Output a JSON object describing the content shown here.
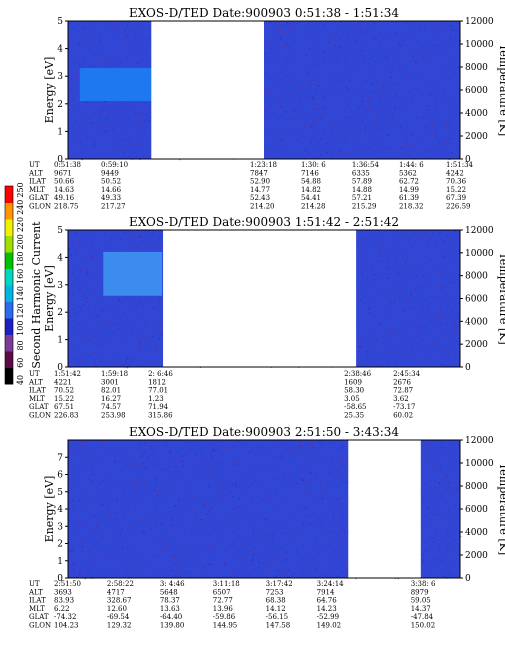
{
  "chart_data": {
    "type": "heatmap",
    "colorbar": {
      "label": "Second Harmonic Current",
      "ticks": [
        "40",
        "60",
        "80",
        "100",
        "120",
        "140",
        "160",
        "180",
        "200",
        "220",
        "240",
        "250"
      ],
      "colors": [
        "#000000",
        "#5a0c48",
        "#7a3c96",
        "#2020c0",
        "#2a6cf0",
        "#00b4e6",
        "#00d8c0",
        "#00c000",
        "#a0e000",
        "#f0f000",
        "#ff9600",
        "#ff0000"
      ]
    },
    "panels": [
      {
        "title": "EXOS-D/TED   Date:900903  0:51:38 - 1:51:34",
        "ylabel": "Energy [eV]",
        "y2label": "Temperature [K]",
        "ylim": [
          0,
          5
        ],
        "y2lim": [
          0,
          12000
        ],
        "yticks": [
          "0",
          "1",
          "2",
          "3",
          "4",
          "5"
        ],
        "y2ticks": [
          "0",
          "2000",
          "4000",
          "6000",
          "8000",
          "10000",
          "12000"
        ],
        "data_gaps": [
          [
            0.2125,
            0.5
          ]
        ],
        "features": [
          {
            "type": "band",
            "x": [
              0.03,
              0.225
            ],
            "y": [
              2.1,
              3.3
            ],
            "color": "#1e78f0"
          }
        ],
        "ephemeris": {
          "labels": [
            "UT",
            "ALT",
            "ILAT",
            "MLT",
            "GLAT",
            "GLON"
          ],
          "columns": [
            {
              "x": 0.0,
              "vals": [
                "0:51:38",
                "9671",
                "50.66",
                "14.63",
                "49.16",
                "218.75"
              ]
            },
            {
              "x": 0.12,
              "vals": [
                "0:59:10",
                "9449",
                "50.52",
                "14.66",
                "49.33",
                "217.27"
              ]
            },
            {
              "x": 0.5,
              "vals": [
                "1:23:18",
                "7847",
                "52.90",
                "14.77",
                "52.43",
                "214.20"
              ]
            },
            {
              "x": 0.63,
              "vals": [
                "1:30: 6",
                "7146",
                "54.88",
                "14.82",
                "54.41",
                "214.28"
              ]
            },
            {
              "x": 0.76,
              "vals": [
                "1:36:54",
                "6335",
                "57.89",
                "14.88",
                "57.21",
                "215.29"
              ]
            },
            {
              "x": 0.88,
              "vals": [
                "1:44: 6",
                "5362",
                "62.72",
                "14.99",
                "61.39",
                "218.32"
              ]
            },
            {
              "x": 1.0,
              "vals": [
                "1:51:34",
                "4242",
                "70.36",
                "15.22",
                "67.39",
                "226.59"
              ]
            }
          ]
        }
      },
      {
        "title": "EXOS-D/TED   Date:900903  1:51:42 - 2:51:42",
        "ylabel": "Energy [eV]",
        "y2label": "Temperature [K]",
        "ylim": [
          0,
          5
        ],
        "y2lim": [
          0,
          12000
        ],
        "yticks": [
          "0",
          "1",
          "2",
          "3",
          "4",
          "5"
        ],
        "y2ticks": [
          "0",
          "2000",
          "4000",
          "6000",
          "8000",
          "10000",
          "12000"
        ],
        "data_gaps": [
          [
            0.2425,
            0.735
          ]
        ],
        "features": [
          {
            "type": "band",
            "x": [
              0.09,
              0.24
            ],
            "y": [
              2.6,
              4.2
            ],
            "color": "#3c8cf0"
          }
        ],
        "ephemeris": {
          "labels": [
            "UT",
            "ALT",
            "ILAT",
            "MLT",
            "GLAT",
            "GLON"
          ],
          "columns": [
            {
              "x": 0.0,
              "vals": [
                "1:51:42",
                "4221",
                "70.52",
                "15.22",
                "67.51",
                "226.83"
              ]
            },
            {
              "x": 0.12,
              "vals": [
                "1:59:18",
                "3001",
                "82.01",
                "16.27",
                "74.57",
                "253.98"
              ]
            },
            {
              "x": 0.24,
              "vals": [
                "2: 6:46",
                "1812",
                "77.01",
                "1.23",
                "71.94",
                "315.86"
              ]
            },
            {
              "x": 0.74,
              "vals": [
                "2:38:46",
                "1609",
                "58.30",
                "3.05",
                "-58.65",
                "25.35"
              ]
            },
            {
              "x": 0.865,
              "vals": [
                "2:45:34",
                "2676",
                "72.87",
                "3.62",
                "-73.17",
                "60.02"
              ]
            }
          ]
        }
      },
      {
        "title": "EXOS-D/TED   Date:900903  2:51:50 - 3:43:34",
        "ylabel": "Energy [eV]",
        "y2label": "Temperature [K]",
        "ylim": [
          0,
          8
        ],
        "y2lim": [
          0,
          12000
        ],
        "yticks": [
          "0",
          "1",
          "2",
          "3",
          "4",
          "5",
          "6",
          "7"
        ],
        "y2ticks": [
          "0",
          "2000",
          "4000",
          "6000",
          "8000",
          "10000",
          "12000"
        ],
        "data_gaps": [
          [
            0.715,
            0.9
          ]
        ],
        "features": [],
        "ephemeris": {
          "labels": [
            "UT",
            "ALT",
            "ILAT",
            "MLT",
            "GLAT",
            "GLON"
          ],
          "columns": [
            {
              "x": 0.0,
              "vals": [
                "2:51:50",
                "3693",
                "83.93",
                "6.22",
                "-74.32",
                "104.23"
              ]
            },
            {
              "x": 0.135,
              "vals": [
                "2:58:22",
                "4717",
                "328.67",
                "12.60",
                "-69.54",
                "129.32"
              ]
            },
            {
              "x": 0.27,
              "vals": [
                "3: 4:46",
                "5648",
                "78.37",
                "13.63",
                "-64.40",
                "139.80"
              ]
            },
            {
              "x": 0.405,
              "vals": [
                "3:11:18",
                "6507",
                "72.77",
                "13.96",
                "-59.86",
                "144.95"
              ]
            },
            {
              "x": 0.54,
              "vals": [
                "3:17:42",
                "7253",
                "68.38",
                "14.12",
                "-56.15",
                "147.58"
              ]
            },
            {
              "x": 0.67,
              "vals": [
                "3:24:14",
                "7914",
                "64.76",
                "14.23",
                "-52.99",
                "149.02"
              ]
            },
            {
              "x": 0.91,
              "vals": [
                "3:38: 6",
                "8979",
                "59.05",
                "14.37",
                "-47.84",
                "150.02"
              ]
            }
          ]
        }
      }
    ]
  }
}
